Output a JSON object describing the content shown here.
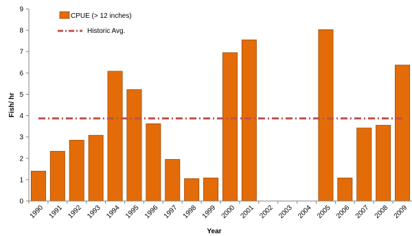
{
  "chart_data": {
    "type": "bar",
    "xlabel": "Year",
    "ylabel": "Fish/ hr",
    "ylim": [
      0,
      9
    ],
    "yticks": [
      0,
      1,
      2,
      3,
      4,
      5,
      6,
      7,
      8,
      9
    ],
    "categories": [
      "1990",
      "1991",
      "1992",
      "1993",
      "1994",
      "1995",
      "1996",
      "1997",
      "1998",
      "1999",
      "2000",
      "2001",
      "2002",
      "2003",
      "2004",
      "2005",
      "2006",
      "2007",
      "2008",
      "2009"
    ],
    "series": [
      {
        "name": "CPUE (> 12 inches)",
        "values": [
          1.4,
          2.33,
          2.85,
          3.08,
          6.08,
          5.22,
          3.62,
          1.95,
          1.05,
          1.08,
          6.95,
          7.55,
          0,
          0,
          0,
          8.03,
          1.08,
          3.42,
          3.55,
          6.37
        ]
      }
    ],
    "reference_lines": [
      {
        "name": "Historic Avg.",
        "value": 3.87
      }
    ],
    "grid": false,
    "legend_position": "top-left",
    "colors": {
      "bar_fill": "#E36C09",
      "bar_stroke": "#9C4A06",
      "historic_line": "#C0504D",
      "axis": "#808080"
    }
  }
}
